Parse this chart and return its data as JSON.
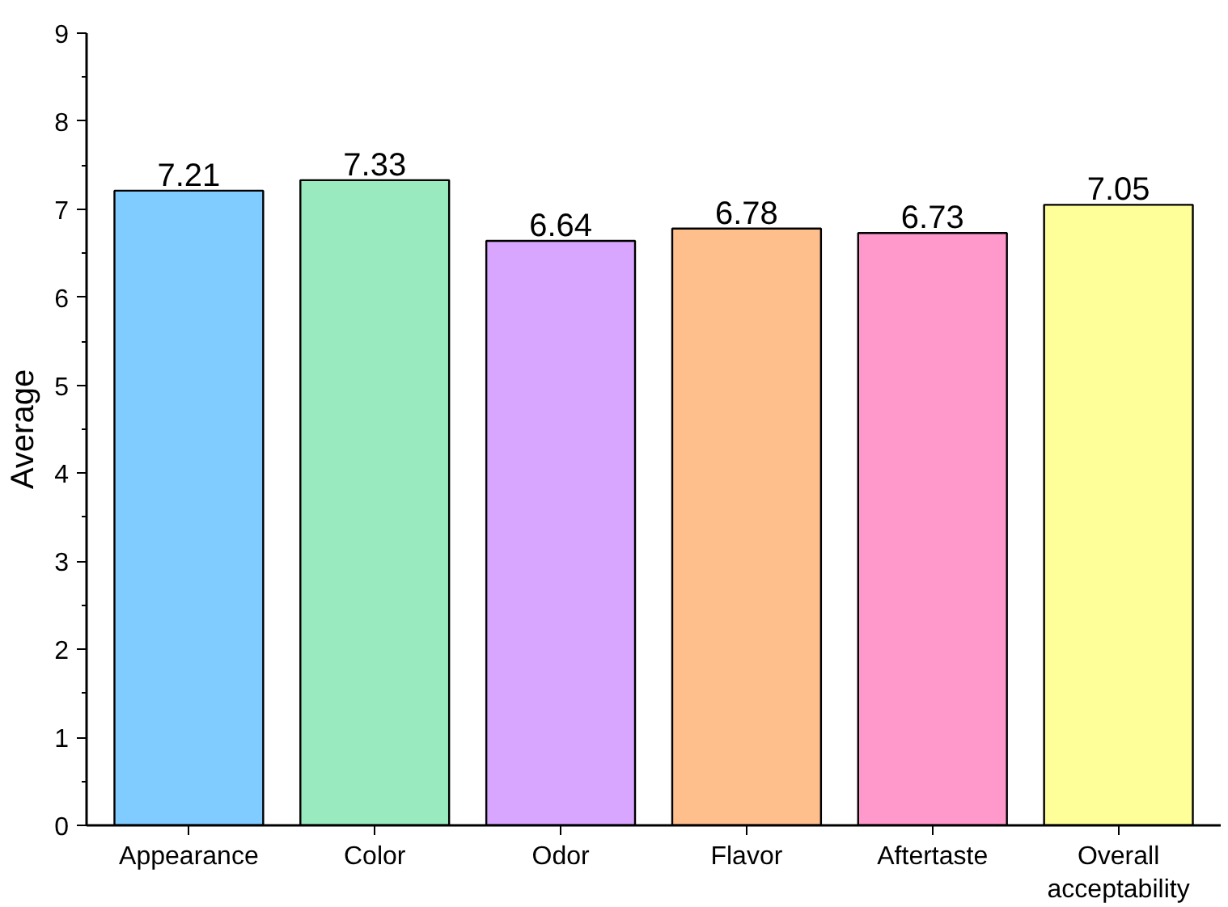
{
  "chart_data": {
    "type": "bar",
    "ylabel": "Average",
    "categories": [
      "Appearance",
      "Color",
      "Odor",
      "Flavor",
      "Aftertaste",
      "Overall acceptability"
    ],
    "values": [
      7.21,
      7.33,
      6.64,
      6.78,
      6.73,
      7.05
    ],
    "colors": [
      "#80cbff",
      "#99ebbf",
      "#d9a6ff",
      "#ffbf8c",
      "#ff99cc",
      "#ffff99"
    ],
    "ylim": [
      0,
      9
    ],
    "yticks": [
      0,
      1,
      2,
      3,
      4,
      5,
      6,
      7,
      8,
      9
    ],
    "grid": false,
    "data_labels": true
  }
}
